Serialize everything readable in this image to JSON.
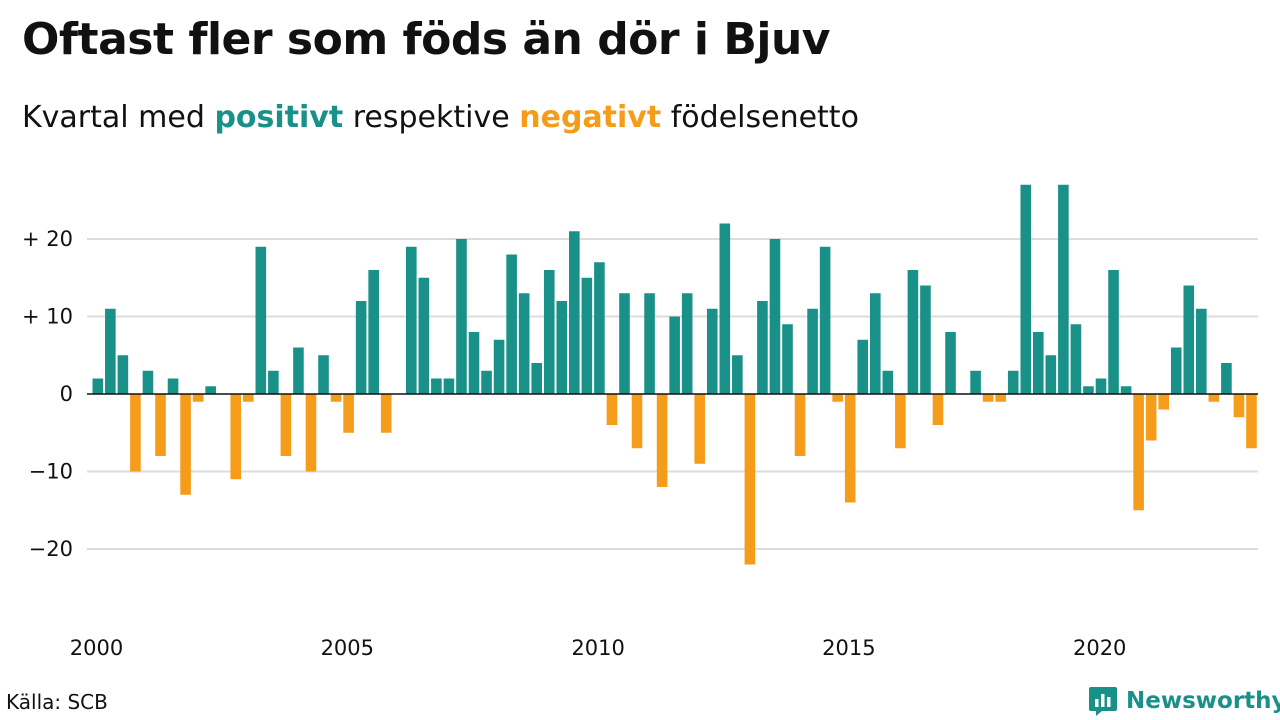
{
  "title": "Oftast fler som föds än dör i Bjuv",
  "subtitle": {
    "prefix": "Kvartal med",
    "positive_word": "positivt",
    "middle": "respektive",
    "negative_word": "negativt",
    "suffix": "födelsenetto"
  },
  "source": "Källa: SCB",
  "brand": {
    "name": "Newsworthy",
    "icon": "newsworthy-logo-icon"
  },
  "colors": {
    "positive": "#1a9188",
    "negative": "#f59c1a",
    "grid": "#dcdcdc",
    "zero_line": "#111111"
  },
  "chart_data": {
    "type": "bar",
    "title": "Oftast fler som föds än dör i Bjuv",
    "subtitle": "Kvartal med positivt respektive negativt födelsenetto",
    "xlabel": "",
    "ylabel": "",
    "ylim": [
      -28,
      28
    ],
    "grid": true,
    "y_ticks": [
      {
        "value": 20,
        "label": "+ 20"
      },
      {
        "value": 10,
        "label": "+ 10"
      },
      {
        "value": 0,
        "label": "0"
      },
      {
        "value": -10,
        "label": "−10"
      },
      {
        "value": -20,
        "label": "−20"
      }
    ],
    "x_ticks": [
      "2000",
      "2005",
      "2010",
      "2015",
      "2020"
    ],
    "start_year": 2000,
    "series": [
      {
        "values": [
          2,
          11,
          5,
          -10,
          3,
          -8,
          2,
          -13,
          -1,
          1,
          0,
          -11,
          -1,
          19,
          3,
          -8,
          6,
          -10,
          5,
          -1,
          -5,
          12,
          16,
          -5,
          0,
          19,
          15,
          2,
          2,
          20,
          8,
          3,
          7,
          18,
          13,
          4,
          16,
          12,
          21,
          15,
          17,
          -4,
          13,
          -7,
          13,
          -12,
          10,
          13,
          -9,
          11,
          22,
          5,
          -22,
          12,
          20,
          9,
          -8,
          11,
          19,
          -1,
          -14,
          7,
          13,
          3,
          -7,
          16,
          14,
          -4,
          8,
          0,
          3,
          -1,
          -1,
          3,
          27,
          8,
          5,
          27,
          9,
          1,
          2,
          16,
          1,
          -15,
          -6,
          -2,
          6,
          14,
          11,
          -1,
          4,
          -3,
          -7
        ]
      }
    ]
  }
}
